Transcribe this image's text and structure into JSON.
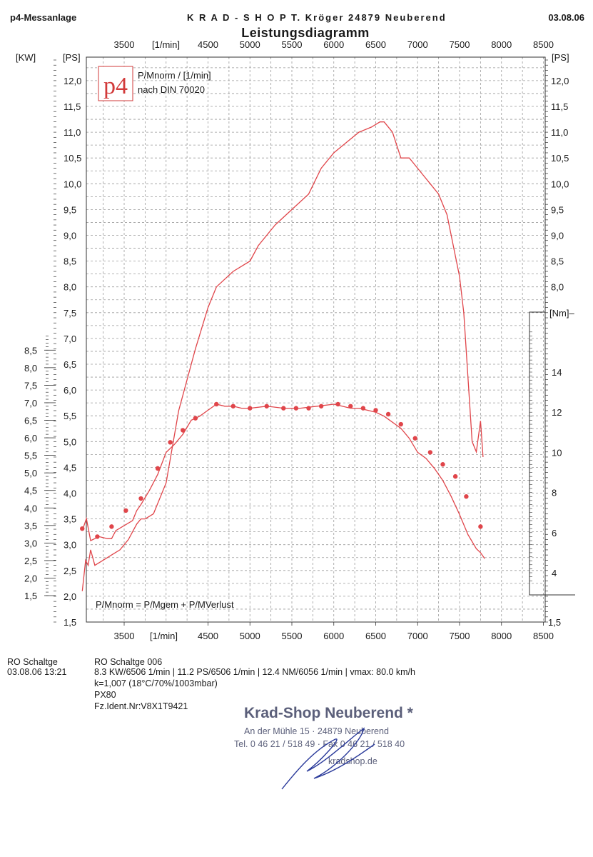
{
  "header": {
    "left": "p4-Messanlage",
    "center": "K R A D - S H O P   T. Kröger   24879  Neuberend",
    "date": "03.08.06",
    "title": "Leistungsdiagramm"
  },
  "legend": {
    "line1": "P/Mnorm / [1/min]",
    "line2": "nach DIN 70020",
    "logo_text": "p4",
    "formula": "P/Mnorm = P/Mgem + P/MVerlust"
  },
  "axes": {
    "kw_unit": "[KW]",
    "ps_unit_left": "[PS]",
    "ps_unit_right": "[PS]",
    "nm_unit": "[Nm]–",
    "rpm_unit_top": "[1/min]",
    "rpm_unit_bottom": "[1/min]"
  },
  "chart_data": {
    "type": "line",
    "title": "Leistungsdiagramm",
    "xlabel": "[1/min]",
    "x_ticks": [
      3500,
      4500,
      5000,
      5500,
      6000,
      6500,
      7000,
      7500,
      8000,
      8500
    ],
    "xlim": [
      3000,
      8500
    ],
    "ps_ticks": [
      "12,0",
      "11,5",
      "11,0",
      "10,5",
      "10,0",
      "9,5",
      "9,0",
      "8,5",
      "8,0",
      "7,5",
      "7,0",
      "6,5",
      "6,0",
      "5,5",
      "5,0",
      "4,5",
      "4,0",
      "3,5",
      "3,0",
      "2,5",
      "2,0",
      "1,5"
    ],
    "ps_ticks_right": [
      "12,0",
      "11,5",
      "11,0",
      "10,5",
      "10,0",
      "9,5",
      "9,0",
      "8,5",
      "8,0"
    ],
    "ps_right_bottom": "1,5",
    "ps_lim": [
      1.5,
      12.5
    ],
    "kw_ticks": [
      "8,5",
      "8,0",
      "7,5",
      "7,0",
      "6,5",
      "6,0",
      "5,5",
      "5,0",
      "4,5",
      "4,0",
      "3,5",
      "3,0",
      "2,5",
      "2,0",
      "1,5"
    ],
    "nm_ticks": [
      "14",
      "12",
      "10",
      "8",
      "6",
      "4"
    ],
    "series": [
      {
        "name": "P/Mnorm",
        "unit": "PS",
        "x": [
          3000,
          3040,
          3070,
          3100,
          3150,
          3250,
          3350,
          3450,
          3550,
          3650,
          3700,
          3750,
          3850,
          4000,
          4150,
          4350,
          4500,
          4600,
          4800,
          5000,
          5100,
          5300,
          5500,
          5700,
          5850,
          6000,
          6150,
          6300,
          6450,
          6550,
          6600,
          6700,
          6800,
          6900,
          6950,
          7050,
          7150,
          7250,
          7350,
          7500,
          7550,
          7650,
          7700,
          7750,
          7780
        ],
        "values": [
          2.1,
          2.7,
          2.6,
          2.9,
          2.6,
          2.7,
          2.8,
          2.9,
          3.1,
          3.4,
          3.5,
          3.5,
          3.6,
          4.2,
          5.6,
          6.8,
          7.6,
          8.0,
          8.3,
          8.5,
          8.8,
          9.2,
          9.5,
          9.8,
          10.3,
          10.6,
          10.8,
          11.0,
          11.1,
          11.2,
          11.2,
          11.0,
          10.5,
          10.5,
          10.4,
          10.2,
          10.0,
          9.8,
          9.4,
          8.2,
          7.5,
          5.0,
          4.8,
          5.4,
          4.7
        ]
      },
      {
        "name": "P/Mnorm",
        "unit": "Nm",
        "x": [
          3000,
          3050,
          3100,
          3200,
          3300,
          3350,
          3400,
          3600,
          3650,
          3700,
          3800,
          3900,
          4000,
          4100,
          4200,
          4300,
          4400,
          4500,
          4600,
          4700,
          4800,
          4900,
          5000,
          5200,
          5400,
          5600,
          5800,
          6000,
          6100,
          6200,
          6300,
          6400,
          6500,
          6600,
          6800,
          6900,
          7000,
          7100,
          7200,
          7300,
          7400,
          7500,
          7600,
          7700,
          7750,
          7800
        ],
        "values": [
          6.1,
          6.7,
          5.6,
          5.8,
          5.7,
          5.7,
          6.1,
          6.6,
          7.1,
          7.4,
          8.1,
          8.9,
          10.0,
          10.4,
          10.9,
          11.6,
          11.8,
          12.1,
          12.4,
          12.3,
          12.3,
          12.2,
          12.2,
          12.3,
          12.2,
          12.2,
          12.3,
          12.4,
          12.3,
          12.2,
          12.2,
          12.1,
          12.0,
          11.8,
          11.2,
          10.7,
          10.0,
          9.7,
          9.2,
          8.6,
          7.8,
          6.9,
          5.9,
          5.2,
          5.0,
          4.7
        ]
      }
    ],
    "markers": {
      "x": [
        3000,
        3180,
        3350,
        3520,
        3700,
        3900,
        4050,
        4200,
        4350,
        4600,
        4800,
        5000,
        5200,
        5400,
        5550,
        5700,
        5850,
        6050,
        6200,
        6350,
        6500,
        6650,
        6800,
        6970,
        7150,
        7300,
        7450,
        7580,
        7750
      ],
      "values": [
        6.2,
        5.8,
        6.3,
        7.1,
        7.7,
        9.2,
        10.5,
        11.1,
        11.7,
        12.4,
        12.3,
        12.2,
        12.3,
        12.2,
        12.2,
        12.2,
        12.3,
        12.4,
        12.3,
        12.2,
        12.1,
        11.9,
        11.4,
        10.7,
        10.0,
        9.4,
        8.8,
        7.8,
        6.3
      ]
    },
    "grid": true
  },
  "footer": {
    "run_label": "RO Schaltge",
    "run_date": "03.08.06  13:21",
    "run_name": "RO Schaltge 006",
    "results": "8.3 KW/6506 1/min  |  11.2 PS/6506 1/min  |  12.4 NM/6056 1/min | vmax: 80.0 km/h",
    "k_factor": "k=1,007 (18°C/70%/1003mbar)",
    "vehicle": "PX80",
    "fz_ident": "Fz.Ident.Nr:V8X1T9421"
  },
  "stamp": {
    "name": "Krad-Shop Neuberend *",
    "address": "An der Mühle 15 · 24879 Neuberend",
    "phone": "Tel. 0 46 21 / 518 49 · Fax 0 46 21 / 518 40",
    "web": "kradshop.de"
  },
  "colors": {
    "curve": "#e0454a",
    "grid": "#9a9a9a",
    "ink": "#1a1a1a",
    "logo_border": "#d23a3a",
    "signature": "#2a3a9a"
  }
}
